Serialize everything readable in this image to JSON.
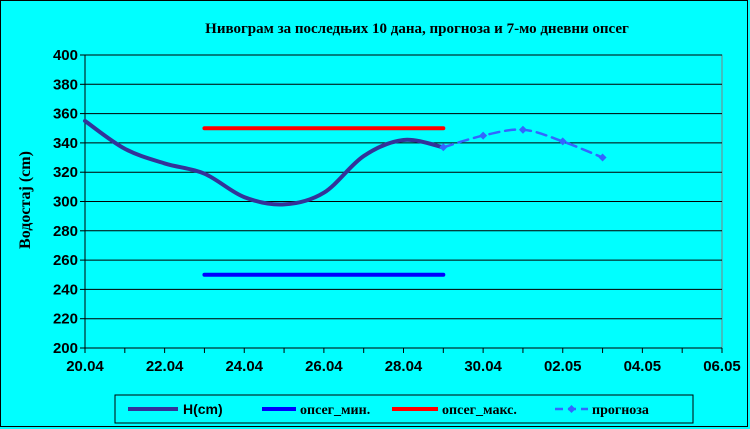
{
  "chart_data": {
    "type": "line",
    "title": "Нивограм за последњих 10 дана, прогноза и 7-мо дневни опсег",
    "ylabel": "Водостај (cm)",
    "xlabel": "",
    "ylim": [
      200,
      400
    ],
    "yticks": [
      200,
      220,
      240,
      260,
      280,
      300,
      320,
      340,
      360,
      380,
      400
    ],
    "xticks": [
      "20.04",
      "22.04",
      "24.04",
      "26.04",
      "28.04",
      "30.04",
      "02.05",
      "04.05",
      "06.05"
    ],
    "grid": true,
    "legend_position": "bottom",
    "x_unit": "day index (0 = 20.04)",
    "series": [
      {
        "name": "H(cm)",
        "color": "#333399",
        "style": "solid",
        "points": [
          [
            0,
            355
          ],
          [
            1,
            336
          ],
          [
            2,
            326
          ],
          [
            3,
            319
          ],
          [
            4,
            303
          ],
          [
            5,
            298
          ],
          [
            6,
            306
          ],
          [
            7,
            331
          ],
          [
            8,
            342
          ],
          [
            9,
            337
          ]
        ]
      },
      {
        "name": "опсег_мин.",
        "color": "#0000FF",
        "style": "solid",
        "points": [
          [
            3,
            250
          ],
          [
            9,
            250
          ]
        ]
      },
      {
        "name": "опсег_макс.",
        "color": "#FF0000",
        "style": "solid",
        "points": [
          [
            3,
            350
          ],
          [
            9,
            350
          ]
        ]
      },
      {
        "name": "прогноза",
        "color": "#3366FF",
        "style": "dashed",
        "markers": true,
        "points": [
          [
            9,
            337
          ],
          [
            10,
            345
          ],
          [
            11,
            349
          ],
          [
            12,
            341
          ],
          [
            13,
            330
          ]
        ]
      }
    ]
  }
}
